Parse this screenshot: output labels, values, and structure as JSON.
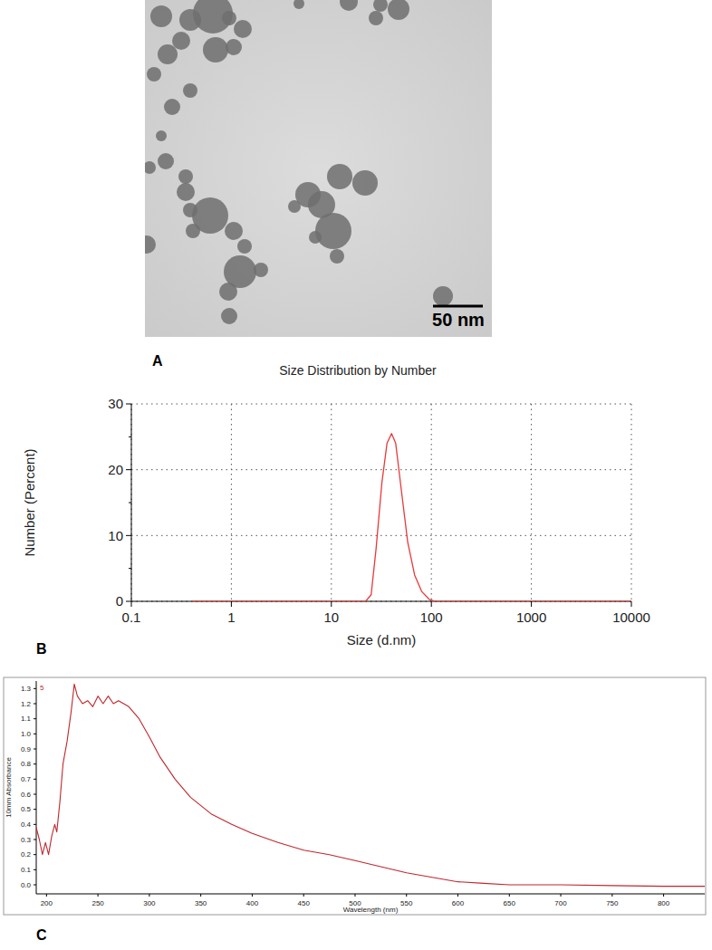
{
  "chart_data": [
    {
      "type": "image",
      "panel": "A",
      "annotations": [
        "50 nm"
      ]
    },
    {
      "type": "line",
      "panel": "B",
      "title": "Size Distribution by Number",
      "x_label": "Size (d.nm)",
      "y_label": "Number (Percent)",
      "log": "x",
      "grid": true,
      "color": "#e8393a",
      "x": [
        0.4,
        1,
        10,
        20,
        22,
        25,
        28,
        32,
        36,
        40,
        44,
        50,
        58,
        68,
        80,
        95,
        110,
        1000,
        10000
      ],
      "values": [
        0,
        0,
        0,
        0,
        0,
        1,
        8,
        18,
        24,
        25.5,
        24,
        17,
        9,
        4,
        1.5,
        0.3,
        0,
        0,
        0
      ],
      "xlim": [
        0.1,
        10000
      ],
      "xticks": [
        0.1,
        1,
        10,
        100,
        1000,
        10000
      ],
      "ylim": [
        0,
        30
      ],
      "yticks": [
        0,
        10,
        20,
        30
      ]
    },
    {
      "type": "line",
      "panel": "C",
      "x_label": "Wavelength (nm)",
      "y_label": "10mm Absorbance",
      "annotations": [
        "5"
      ],
      "grid": false,
      "color": "#c0272d",
      "x": [
        190,
        193,
        196,
        199,
        202,
        205,
        208,
        210,
        213,
        216,
        220,
        224,
        227,
        230,
        235,
        240,
        245,
        250,
        255,
        260,
        265,
        270,
        275,
        280,
        290,
        300,
        310,
        325,
        340,
        360,
        380,
        400,
        425,
        450,
        475,
        500,
        525,
        550,
        575,
        600,
        625,
        650,
        700,
        750,
        800,
        840
      ],
      "values": [
        0.38,
        0.3,
        0.2,
        0.28,
        0.2,
        0.32,
        0.4,
        0.35,
        0.55,
        0.8,
        0.95,
        1.15,
        1.33,
        1.25,
        1.2,
        1.22,
        1.18,
        1.25,
        1.2,
        1.25,
        1.2,
        1.22,
        1.2,
        1.18,
        1.1,
        0.98,
        0.85,
        0.7,
        0.58,
        0.47,
        0.4,
        0.34,
        0.28,
        0.23,
        0.2,
        0.16,
        0.12,
        0.08,
        0.05,
        0.02,
        0.01,
        0.0,
        0.0,
        -0.005,
        -0.01,
        -0.01
      ],
      "xlim": [
        190,
        840
      ],
      "xticks": [
        200,
        250,
        300,
        350,
        400,
        450,
        500,
        550,
        600,
        650,
        700,
        750,
        800
      ],
      "ylim": [
        -0.06,
        1.35
      ],
      "yticks": [
        {
          "value": 0,
          "label": "0.0"
        },
        0.1,
        0.2,
        0.3,
        0.4,
        0.5,
        0.6,
        0.7,
        0.8,
        0.9,
        {
          "value": 1,
          "label": "1.0"
        },
        1.1,
        1.2,
        1.3
      ]
    }
  ]
}
